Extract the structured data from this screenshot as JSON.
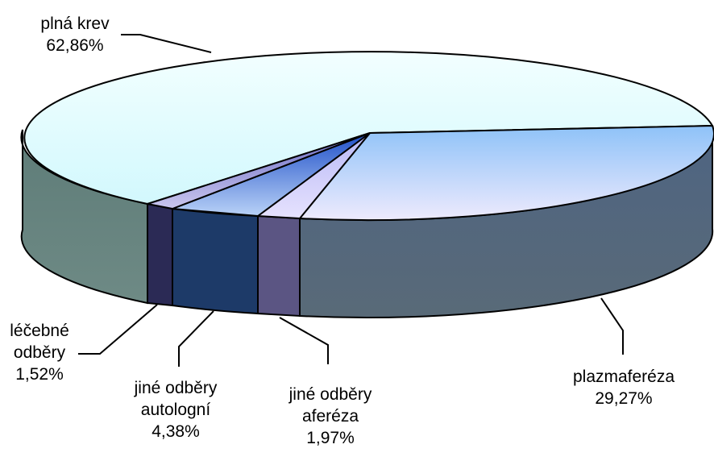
{
  "chart_data": {
    "type": "pie",
    "title": "",
    "three_d": true,
    "slices": [
      {
        "label": "plná krev",
        "value": 62.86,
        "value_text": "62,86%",
        "color": "#dcfcfe"
      },
      {
        "label": "plazmaferéza",
        "value": 29.27,
        "value_text": "29,27%",
        "color": "#a6d0fb"
      },
      {
        "label": "jiné odběry aferéza",
        "value": 1.97,
        "value_text": "1,97%",
        "color": "#d0d0fb"
      },
      {
        "label": "jiné odběry autologní",
        "value": 4.38,
        "value_text": "4,38%",
        "color": "#3f78e1"
      },
      {
        "label": "léčebné odběry",
        "value": 1.52,
        "value_text": "1,52%",
        "color": "#8f8fd5"
      }
    ]
  },
  "labels": {
    "plna_krev": {
      "line1": "plná krev",
      "pct": "62,86%"
    },
    "plazmafereza": {
      "line1": "plazmaferéza",
      "pct": "29,27%"
    },
    "jine_afereza": {
      "line1": "jiné odběry",
      "line2": "aferéza",
      "pct": "1,97%"
    },
    "jine_autologni": {
      "line1": "jiné odběry",
      "line2": "autologní",
      "pct": "4,38%"
    },
    "lecebne": {
      "line1": "léčebné",
      "line2": "odběry",
      "pct": "1,52%"
    }
  }
}
